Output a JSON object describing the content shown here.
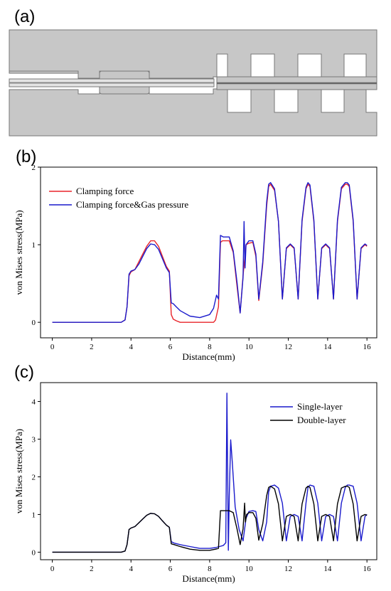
{
  "panels": {
    "a": {
      "label": "(a)"
    },
    "b": {
      "label": "(b)"
    },
    "c": {
      "label": "(c)"
    }
  },
  "colors": {
    "die_fill": "#c7c7c7",
    "die_stroke": "#777777",
    "red": "#e8242a",
    "blue": "#1a1acc",
    "black": "#000000"
  },
  "chart_data": [
    {
      "id": "b",
      "type": "line",
      "xlabel": "Distance(mm)",
      "ylabel": "von Mises stress(MPa)",
      "xlim": [
        -0.6,
        16.5
      ],
      "ylim": [
        -0.2,
        2.0
      ],
      "xticks": [
        0,
        2,
        4,
        6,
        8,
        10,
        12,
        14,
        16
      ],
      "yticks": [
        0,
        1,
        2
      ],
      "legend_position": "top-left",
      "series": [
        {
          "name": "Clamping force",
          "color": "#e8242a",
          "x": [
            0,
            3.5,
            3.7,
            3.8,
            3.9,
            4.0,
            4.2,
            4.4,
            4.6,
            4.8,
            5.0,
            5.2,
            5.4,
            5.6,
            5.8,
            5.95,
            6.05,
            6.15,
            6.3,
            6.5,
            7.0,
            7.5,
            8.0,
            8.2,
            8.3,
            8.45,
            8.55,
            8.65,
            9.0,
            9.2,
            9.4,
            9.55,
            9.7,
            9.85,
            10.0,
            10.2,
            10.35,
            10.5,
            10.7,
            10.9,
            11.0,
            11.1,
            11.3,
            11.5,
            11.7,
            11.9,
            12.1,
            12.3,
            12.5,
            12.7,
            12.9,
            13.0,
            13.1,
            13.3,
            13.5,
            13.7,
            13.9,
            14.1,
            14.3,
            14.5,
            14.7,
            14.9,
            15.0,
            15.1,
            15.3,
            15.5,
            15.7,
            15.9,
            16.0
          ],
          "y": [
            0,
            0,
            0.03,
            0.2,
            0.6,
            0.65,
            0.68,
            0.78,
            0.88,
            0.98,
            1.05,
            1.05,
            0.98,
            0.85,
            0.72,
            0.66,
            0.1,
            0.04,
            0.02,
            0,
            0,
            0,
            0,
            0,
            0.03,
            0.2,
            1.03,
            1.05,
            1.05,
            0.9,
            0.45,
            0.12,
            0.6,
            1.0,
            1.02,
            1.03,
            0.85,
            0.28,
            0.75,
            1.5,
            1.75,
            1.78,
            1.7,
            1.3,
            0.3,
            0.95,
            1.0,
            0.95,
            0.3,
            1.3,
            1.72,
            1.78,
            1.75,
            1.3,
            0.3,
            0.95,
            1.0,
            0.95,
            0.3,
            1.3,
            1.72,
            1.78,
            1.78,
            1.75,
            1.3,
            0.3,
            0.95,
            1.0,
            0.98
          ]
        },
        {
          "name": "Clamping force&Gas pressure",
          "color": "#1a1acc",
          "x": [
            0,
            3.5,
            3.7,
            3.8,
            3.9,
            4.0,
            4.2,
            4.4,
            4.6,
            4.8,
            5.0,
            5.2,
            5.4,
            5.6,
            5.8,
            5.95,
            6.05,
            6.15,
            6.3,
            6.5,
            7.0,
            7.5,
            8.0,
            8.2,
            8.35,
            8.45,
            8.55,
            8.7,
            9.0,
            9.2,
            9.4,
            9.55,
            9.7,
            9.75,
            9.8,
            9.85,
            10.0,
            10.2,
            10.35,
            10.5,
            10.7,
            10.9,
            11.0,
            11.1,
            11.3,
            11.5,
            11.7,
            11.9,
            12.1,
            12.3,
            12.5,
            12.7,
            12.9,
            13.0,
            13.1,
            13.3,
            13.5,
            13.7,
            13.9,
            14.1,
            14.3,
            14.5,
            14.7,
            14.9,
            15.0,
            15.1,
            15.3,
            15.5,
            15.7,
            15.9,
            16.0
          ],
          "y": [
            0,
            0,
            0.03,
            0.2,
            0.62,
            0.66,
            0.68,
            0.75,
            0.85,
            0.95,
            1.01,
            1.0,
            0.94,
            0.82,
            0.7,
            0.64,
            0.25,
            0.24,
            0.2,
            0.15,
            0.08,
            0.06,
            0.1,
            0.18,
            0.35,
            0.3,
            1.12,
            1.1,
            1.1,
            0.92,
            0.5,
            0.12,
            0.58,
            1.3,
            0.7,
            1.0,
            1.05,
            1.05,
            0.88,
            0.3,
            0.78,
            1.55,
            1.78,
            1.8,
            1.72,
            1.3,
            0.3,
            0.96,
            1.01,
            0.96,
            0.3,
            1.32,
            1.74,
            1.8,
            1.77,
            1.32,
            0.3,
            0.96,
            1.01,
            0.96,
            0.3,
            1.32,
            1.74,
            1.8,
            1.8,
            1.77,
            1.32,
            0.3,
            0.96,
            1.01,
            0.99
          ]
        }
      ]
    },
    {
      "id": "c",
      "type": "line",
      "xlabel": "Distance(mm)",
      "ylabel": "von Mises stress(MPa)",
      "xlim": [
        -0.6,
        16.5
      ],
      "ylim": [
        -0.2,
        4.5
      ],
      "xticks": [
        0,
        2,
        4,
        6,
        8,
        10,
        12,
        14,
        16
      ],
      "yticks": [
        0,
        1,
        2,
        3,
        4
      ],
      "legend_position": "top-right",
      "series": [
        {
          "name": "Single-layer",
          "color": "#1a1acc",
          "x": [
            0,
            3.5,
            3.7,
            3.8,
            3.9,
            4.0,
            4.2,
            4.4,
            4.6,
            4.8,
            5.0,
            5.2,
            5.4,
            5.6,
            5.8,
            5.95,
            6.05,
            6.2,
            6.5,
            7.0,
            7.5,
            8.0,
            8.3,
            8.5,
            8.7,
            8.82,
            8.88,
            8.95,
            9.0,
            9.07,
            9.15,
            9.3,
            9.5,
            9.7,
            9.85,
            10.0,
            10.2,
            10.35,
            10.5,
            10.7,
            10.9,
            11.0,
            11.1,
            11.3,
            11.5,
            11.7,
            11.9,
            12.1,
            12.3,
            12.5,
            12.7,
            12.9,
            13.0,
            13.1,
            13.3,
            13.5,
            13.7,
            13.9,
            14.1,
            14.3,
            14.5,
            14.7,
            14.9,
            15.0,
            15.1,
            15.3,
            15.5,
            15.7,
            15.9,
            16.0
          ],
          "y": [
            0,
            0,
            0.03,
            0.2,
            0.6,
            0.64,
            0.68,
            0.78,
            0.88,
            0.98,
            1.03,
            1.02,
            0.95,
            0.83,
            0.72,
            0.66,
            0.28,
            0.24,
            0.2,
            0.15,
            0.1,
            0.1,
            0.12,
            0.15,
            0.18,
            0.25,
            4.22,
            0.05,
            1.5,
            2.98,
            2.4,
            1.2,
            0.6,
            0.3,
            0.9,
            1.08,
            1.1,
            1.08,
            0.6,
            0.3,
            0.8,
            1.6,
            1.75,
            1.78,
            1.7,
            1.3,
            0.3,
            0.95,
            1.0,
            0.95,
            0.3,
            1.3,
            1.72,
            1.78,
            1.75,
            1.3,
            0.3,
            0.95,
            1.0,
            0.95,
            0.3,
            1.3,
            1.72,
            1.78,
            1.78,
            1.75,
            1.3,
            0.3,
            0.95,
            1.0
          ]
        },
        {
          "name": "Double-layer",
          "color": "#000000",
          "x": [
            0,
            3.5,
            3.7,
            3.8,
            3.9,
            4.0,
            4.2,
            4.4,
            4.6,
            4.8,
            5.0,
            5.2,
            5.4,
            5.6,
            5.8,
            5.95,
            6.05,
            6.2,
            6.5,
            7.0,
            7.5,
            8.0,
            8.3,
            8.45,
            8.55,
            8.7,
            9.0,
            9.2,
            9.4,
            9.55,
            9.7,
            9.78,
            9.82,
            9.88,
            10.0,
            10.2,
            10.35,
            10.5,
            10.7,
            10.9,
            11.0,
            11.1,
            11.3,
            11.5,
            11.7,
            11.9,
            12.1,
            12.3,
            12.5,
            12.7,
            12.9,
            13.0,
            13.1,
            13.3,
            13.5,
            13.7,
            13.9,
            14.1,
            14.3,
            14.5,
            14.7,
            14.9,
            15.0,
            15.1,
            15.3,
            15.5,
            15.7,
            15.9,
            16.0
          ],
          "y": [
            0,
            0,
            0.03,
            0.2,
            0.6,
            0.64,
            0.68,
            0.78,
            0.88,
            0.98,
            1.03,
            1.02,
            0.95,
            0.83,
            0.72,
            0.66,
            0.22,
            0.2,
            0.15,
            0.08,
            0.05,
            0.05,
            0.08,
            0.1,
            1.1,
            1.1,
            1.1,
            1.05,
            0.6,
            0.2,
            0.62,
            1.3,
            0.8,
            1.0,
            1.05,
            1.05,
            0.9,
            0.32,
            0.75,
            1.5,
            1.72,
            1.75,
            1.68,
            1.28,
            0.3,
            0.95,
            1.0,
            0.95,
            0.3,
            1.28,
            1.7,
            1.75,
            1.72,
            1.28,
            0.3,
            0.95,
            1.0,
            0.95,
            0.3,
            1.28,
            1.7,
            1.75,
            1.75,
            1.72,
            1.28,
            0.3,
            0.95,
            1.0,
            0.98
          ]
        }
      ]
    }
  ]
}
